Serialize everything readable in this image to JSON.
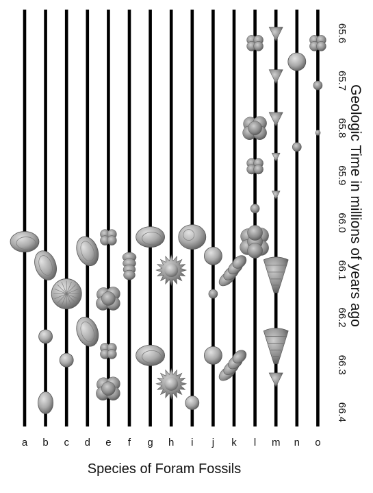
{
  "chart_data": {
    "type": "range-chart",
    "x_title": "Species of Foram Fossils",
    "y_title": "Geologic Time in millions of years ago",
    "species": [
      "a",
      "b",
      "c",
      "d",
      "e",
      "f",
      "g",
      "h",
      "i",
      "j",
      "k",
      "l",
      "m",
      "n",
      "o"
    ],
    "time_ticks": [
      "65.6",
      "65.7",
      "65.8",
      "65.9",
      "66.0",
      "66.1",
      "66.2",
      "66.3",
      "66.4"
    ],
    "ylim": [
      65.55,
      66.43
    ],
    "line_color": "#000000",
    "fossil_colors": [
      "#b9b9b9",
      "#8f8f8f",
      "#6e6e6e"
    ],
    "fossils": [
      {
        "species": "a",
        "time": 66.04,
        "shape": "lens"
      },
      {
        "species": "b",
        "time": 66.09,
        "shape": "oval"
      },
      {
        "species": "b",
        "time": 66.24,
        "shape": "round-small"
      },
      {
        "species": "b",
        "time": 66.38,
        "shape": "oval-small"
      },
      {
        "species": "c",
        "time": 66.15,
        "shape": "radial"
      },
      {
        "species": "c",
        "time": 66.29,
        "shape": "round-small"
      },
      {
        "species": "d",
        "time": 66.06,
        "shape": "oval"
      },
      {
        "species": "d",
        "time": 66.23,
        "shape": "oval"
      },
      {
        "species": "e",
        "time": 66.03,
        "shape": "lobed-small"
      },
      {
        "species": "e",
        "time": 66.16,
        "shape": "lobed"
      },
      {
        "species": "e",
        "time": 66.27,
        "shape": "lobed-small"
      },
      {
        "species": "e",
        "time": 66.35,
        "shape": "lobed"
      },
      {
        "species": "f",
        "time": 66.09,
        "shape": "column"
      },
      {
        "species": "g",
        "time": 66.03,
        "shape": "lens"
      },
      {
        "species": "g",
        "time": 66.28,
        "shape": "lens"
      },
      {
        "species": "h",
        "time": 66.1,
        "shape": "spiky"
      },
      {
        "species": "h",
        "time": 66.34,
        "shape": "spiky"
      },
      {
        "species": "i",
        "time": 66.03,
        "shape": "round-large"
      },
      {
        "species": "i",
        "time": 66.38,
        "shape": "round-small"
      },
      {
        "species": "j",
        "time": 66.07,
        "shape": "round-medium"
      },
      {
        "species": "j",
        "time": 66.15,
        "shape": "dot"
      },
      {
        "species": "j",
        "time": 66.28,
        "shape": "round-medium"
      },
      {
        "species": "k",
        "time": 66.1,
        "shape": "stacked"
      },
      {
        "species": "k",
        "time": 66.3,
        "shape": "stacked"
      },
      {
        "species": "l",
        "time": 65.62,
        "shape": "lobed-small"
      },
      {
        "species": "l",
        "time": 65.8,
        "shape": "lobed"
      },
      {
        "species": "l",
        "time": 65.88,
        "shape": "lobed-small"
      },
      {
        "species": "l",
        "time": 65.97,
        "shape": "dot"
      },
      {
        "species": "l",
        "time": 66.04,
        "shape": "lobed-large"
      },
      {
        "species": "m",
        "time": 65.6,
        "shape": "tri-small"
      },
      {
        "species": "m",
        "time": 65.69,
        "shape": "tri-small"
      },
      {
        "species": "m",
        "time": 65.78,
        "shape": "tri-small"
      },
      {
        "species": "m",
        "time": 65.86,
        "shape": "tri-dot"
      },
      {
        "species": "m",
        "time": 65.94,
        "shape": "tri-dot"
      },
      {
        "species": "m",
        "time": 66.11,
        "shape": "cone"
      },
      {
        "species": "m",
        "time": 66.26,
        "shape": "cone"
      },
      {
        "species": "m",
        "time": 66.33,
        "shape": "tri-small"
      },
      {
        "species": "n",
        "time": 65.66,
        "shape": "round-medium"
      },
      {
        "species": "n",
        "time": 65.84,
        "shape": "dot"
      },
      {
        "species": "o",
        "time": 65.62,
        "shape": "lobed-small"
      },
      {
        "species": "o",
        "time": 65.71,
        "shape": "dot"
      },
      {
        "species": "o",
        "time": 65.81,
        "shape": "tiny"
      }
    ]
  }
}
